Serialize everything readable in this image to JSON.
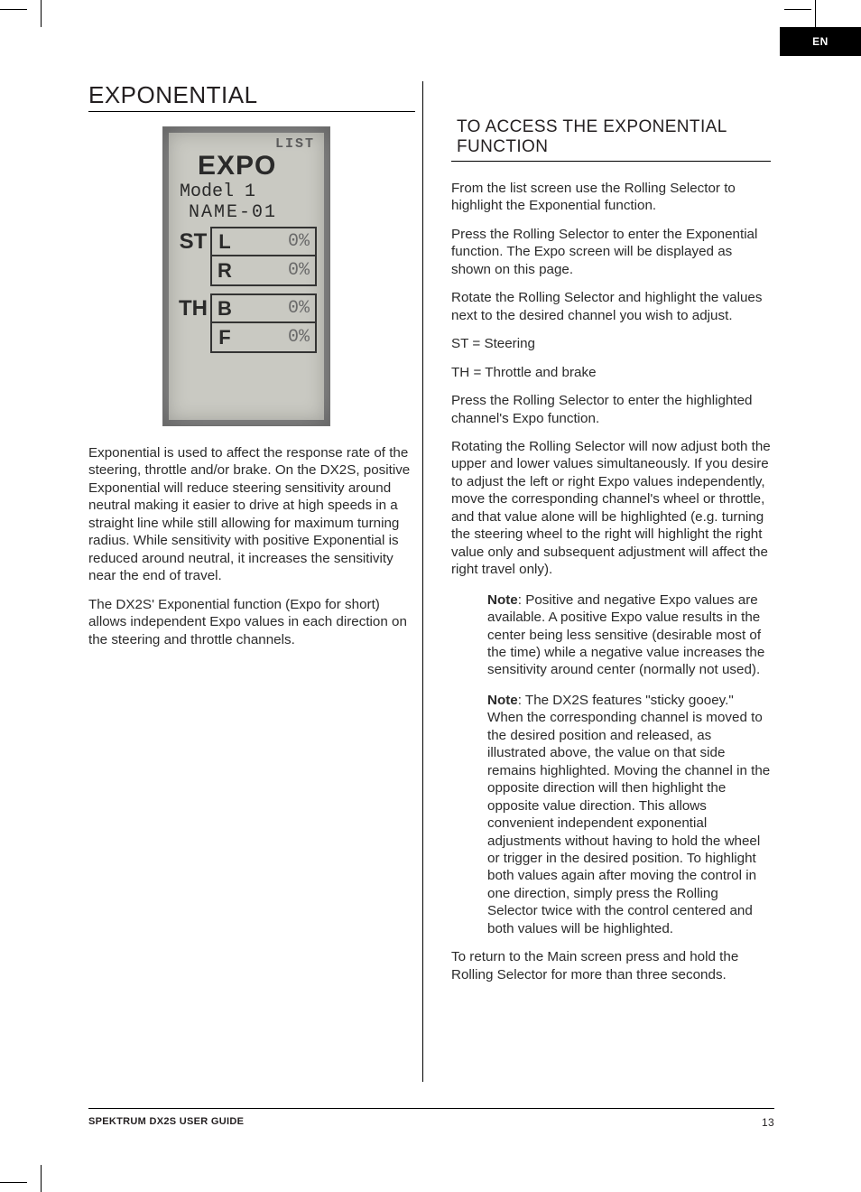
{
  "lang_badge": "EN",
  "heading": "EXPONENTIAL",
  "lcd": {
    "list_label": "LIST",
    "title": "EXPO",
    "model": "Model 1",
    "name": "NAME-01",
    "rows": [
      {
        "channel": "ST",
        "dir": "L",
        "value": "0%"
      },
      {
        "channel": "",
        "dir": "R",
        "value": "0%"
      },
      {
        "channel": "TH",
        "dir": "B",
        "value": "0%"
      },
      {
        "channel": "",
        "dir": "F",
        "value": "0%"
      }
    ],
    "colors": {
      "outer": "#8d8d8d",
      "screen": "#c9c9c2",
      "ink": "#2a2a2a",
      "ghost": "#6a6a6a"
    }
  },
  "left_paragraphs": [
    "Exponential is used to affect the response rate of the steering, throttle and/or brake. On the DX2S, positive Exponential will reduce steering sensitivity around neutral making it easier to drive at high speeds in a straight line while still allowing for maximum turning radius. While sensitivity with positive Exponential is reduced around neutral, it increases the sensitivity near the end of travel.",
    "The DX2S' Exponential function (Expo for short) allows independent Expo values in each direction on the steering and throttle channels."
  ],
  "right_heading": "TO ACCESS THE EXPONENTIAL FUNCTION",
  "right_paragraphs": [
    "From the list screen use the Rolling Selector to highlight the Exponential function.",
    "Press the Rolling Selector to enter the Exponential function. The Expo screen will be displayed as shown on this page.",
    "Rotate the Rolling Selector and highlight the values next to the desired channel you wish to adjust.",
    "ST = Steering",
    "TH = Throttle and brake",
    "Press the Rolling Selector to enter the highlighted channel's Expo function.",
    "Rotating the Rolling Selector will now adjust both the upper and lower values simultaneously. If you desire to adjust the left or right Expo values independently, move the corresponding channel's wheel or throttle, and that value alone will be highlighted (e.g. turning the steering wheel to the right will highlight the right value only and subsequent adjustment will affect the right travel only)."
  ],
  "notes": [
    {
      "label": "Note",
      "text": ": Positive and negative Expo values are available. A positive Expo value results in the center being less sensitive (desirable most of the time) while a negative value increases the sensitivity around center (normally not used)."
    },
    {
      "label": "Note",
      "text": ": The DX2S features \"sticky gooey.\" When the corresponding channel is moved to the desired position and released, as illustrated above, the value on that side remains highlighted. Moving the channel in the opposite direction will then highlight the opposite value direction. This allows convenient independent exponential adjustments without having to hold the wheel or trigger in the desired position. To highlight both values again after moving the control in one direction, simply press the Rolling Selector twice with the control centered and both values will be highlighted."
    }
  ],
  "right_closing": "To return to the Main screen press and hold the Rolling Selector for more than three seconds.",
  "footer": {
    "guide": "SPEKTRUM DX2S USER GUIDE",
    "page": "13"
  }
}
